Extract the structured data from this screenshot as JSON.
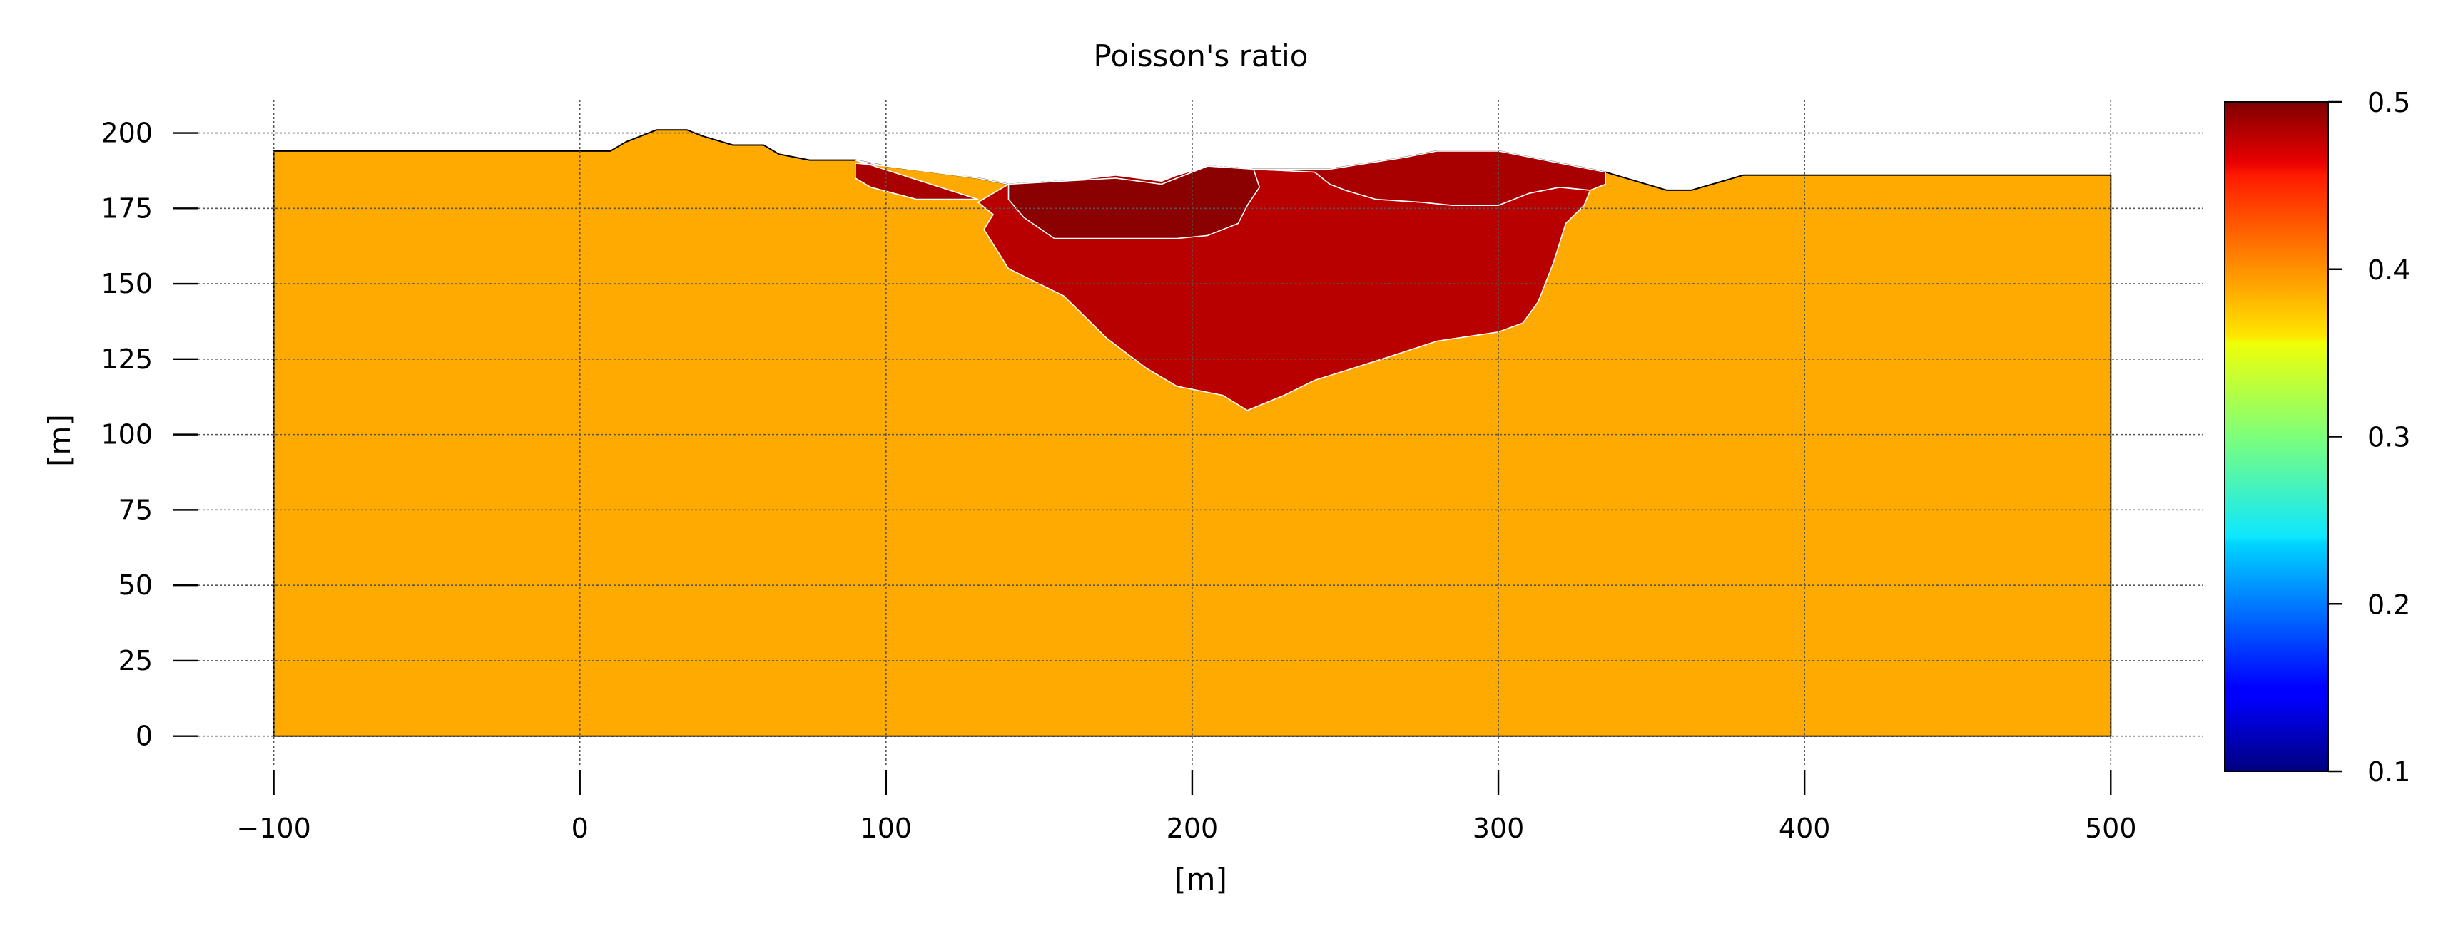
{
  "chart_data": {
    "type": "heatmap",
    "title": "Poisson's ratio",
    "xlabel": "[m]",
    "ylabel": "[m]",
    "xlim": [
      -133,
      530
    ],
    "ylim": [
      -10,
      211
    ],
    "xticks": [
      -100,
      0,
      100,
      200,
      300,
      400,
      500
    ],
    "xtick_labels": [
      "−100",
      "0",
      "100",
      "200",
      "300",
      "400",
      "500"
    ],
    "yticks": [
      0,
      25,
      50,
      75,
      100,
      125,
      150,
      175,
      200
    ],
    "ytick_labels": [
      "0",
      "25",
      "50",
      "75",
      "100",
      "125",
      "150",
      "175",
      "200"
    ],
    "grid": true,
    "colormap": "jet",
    "colorbar": {
      "min": 0.1,
      "max": 0.5,
      "ticks": [
        0.1,
        0.2,
        0.3,
        0.4,
        0.5
      ],
      "tick_labels": [
        "0.1",
        "0.2",
        "0.3",
        "0.4",
        "0.5"
      ]
    },
    "regions": [
      {
        "name": "background",
        "value": 0.4,
        "color": "#ffaa00",
        "outline": [
          [
            -100,
            0
          ],
          [
            500,
            0
          ],
          [
            500,
            186
          ],
          [
            380,
            186
          ],
          [
            363,
            181
          ],
          [
            355,
            181
          ],
          [
            345,
            184
          ],
          [
            335,
            187
          ],
          [
            300,
            194
          ],
          [
            280,
            194
          ],
          [
            270,
            192
          ],
          [
            245,
            188
          ],
          [
            220,
            188
          ],
          [
            205,
            189
          ],
          [
            190,
            183
          ],
          [
            175,
            185
          ],
          [
            140,
            183
          ],
          [
            130,
            185
          ],
          [
            100,
            189
          ],
          [
            90,
            191
          ],
          [
            75,
            191
          ],
          [
            65,
            193
          ],
          [
            60,
            196
          ],
          [
            50,
            196
          ],
          [
            40,
            199
          ],
          [
            35,
            201
          ],
          [
            25,
            201
          ],
          [
            15,
            197
          ],
          [
            10,
            194
          ],
          [
            -100,
            194
          ]
        ]
      },
      {
        "name": "deep-basin",
        "value": 0.47,
        "color": "#b80000",
        "outline": [
          [
            130,
            177
          ],
          [
            135,
            173
          ],
          [
            132,
            168
          ],
          [
            140,
            155
          ],
          [
            158,
            146
          ],
          [
            172,
            132
          ],
          [
            185,
            122
          ],
          [
            195,
            116
          ],
          [
            210,
            113
          ],
          [
            218,
            108
          ],
          [
            230,
            113
          ],
          [
            240,
            118
          ],
          [
            262,
            125
          ],
          [
            280,
            131
          ],
          [
            300,
            134
          ],
          [
            308,
            137
          ],
          [
            313,
            144
          ],
          [
            318,
            157
          ],
          [
            322,
            170
          ],
          [
            325,
            173
          ],
          [
            328,
            176
          ],
          [
            330,
            181
          ],
          [
            320,
            182
          ],
          [
            310,
            180
          ],
          [
            300,
            176
          ],
          [
            285,
            176
          ],
          [
            275,
            177
          ],
          [
            260,
            178
          ],
          [
            250,
            181
          ],
          [
            245,
            183
          ],
          [
            240,
            187
          ],
          [
            220,
            188
          ],
          [
            205,
            189
          ],
          [
            190,
            183
          ],
          [
            175,
            185
          ],
          [
            140,
            183
          ]
        ]
      },
      {
        "name": "upper-left-layer",
        "value": 0.48,
        "color": "#a80000",
        "outline": [
          [
            90,
            191
          ],
          [
            100,
            189
          ],
          [
            130,
            185
          ],
          [
            140,
            183
          ],
          [
            175,
            185
          ],
          [
            190,
            183
          ],
          [
            205,
            189
          ],
          [
            220,
            188
          ],
          [
            240,
            187
          ],
          [
            245,
            183
          ],
          [
            250,
            181
          ],
          [
            260,
            178
          ],
          [
            275,
            177
          ],
          [
            285,
            176
          ],
          [
            300,
            176
          ],
          [
            310,
            180
          ],
          [
            320,
            182
          ],
          [
            330,
            181
          ],
          [
            335,
            183
          ],
          [
            335,
            187
          ],
          [
            300,
            194
          ],
          [
            280,
            194
          ],
          [
            270,
            192
          ],
          [
            245,
            188
          ],
          [
            230,
            188
          ],
          [
            220,
            188
          ],
          [
            205,
            189
          ],
          [
            195,
            186
          ],
          [
            190,
            184
          ],
          [
            175,
            186
          ],
          [
            150,
            183
          ],
          [
            140,
            183
          ],
          [
            130,
            185
          ],
          [
            110,
            188
          ],
          [
            90,
            190
          ],
          [
            90,
            185
          ],
          [
            95,
            182
          ],
          [
            110,
            178
          ],
          [
            130,
            178
          ]
        ]
      },
      {
        "name": "shallow-lens",
        "value": 0.5,
        "color": "#8b0000",
        "outline": [
          [
            140,
            183
          ],
          [
            175,
            185
          ],
          [
            190,
            183
          ],
          [
            205,
            189
          ],
          [
            220,
            188
          ],
          [
            222,
            182
          ],
          [
            218,
            176
          ],
          [
            215,
            170
          ],
          [
            205,
            166
          ],
          [
            195,
            165
          ],
          [
            175,
            165
          ],
          [
            155,
            165
          ],
          [
            145,
            172
          ],
          [
            140,
            178
          ]
        ]
      }
    ]
  }
}
